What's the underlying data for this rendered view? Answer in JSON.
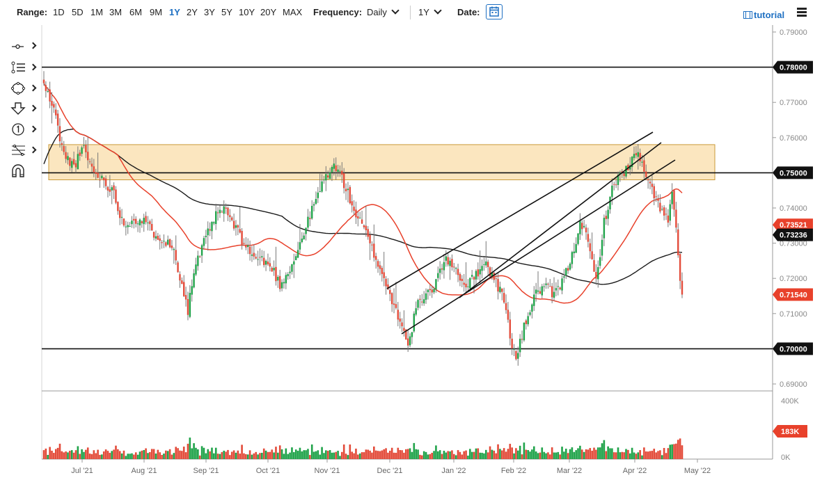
{
  "toolbar": {
    "range_label": "Range:",
    "ranges": [
      "1D",
      "5D",
      "1M",
      "3M",
      "6M",
      "9M",
      "1Y",
      "2Y",
      "3Y",
      "5Y",
      "10Y",
      "20Y",
      "MAX"
    ],
    "active_range": "1Y",
    "frequency_label": "Frequency:",
    "frequency_value": "Daily",
    "period_value": "1Y",
    "date_label": "Date:",
    "tutorial_label": "tutorial"
  },
  "tools": [
    "crosshair-tool-icon",
    "trend-lines-icon",
    "shapes-icon",
    "arrow-down-icon",
    "number-marker-icon",
    "fibonacci-icon",
    "magnet-icon"
  ],
  "colors": {
    "up": "#20a34a",
    "down": "#e34b3a",
    "ma_fast": "#e8412b",
    "ma_slow": "#1a1a1a",
    "zone_fill": "#fbe6bf",
    "zone_stroke": "#c99a3a",
    "accent": "#1d6fc2"
  },
  "chart_data": {
    "type": "candlestick",
    "title": "",
    "xlabel": "",
    "ylabel": "",
    "ylim": [
      0.685,
      0.79
    ],
    "y_ticks": [
      "0.79000",
      "0.78000",
      "0.77000",
      "0.76000",
      "0.75000",
      "0.74000",
      "0.73000",
      "0.72000",
      "0.71000",
      "0.70000",
      "0.69000"
    ],
    "x_ticks": [
      "Jul '21",
      "Aug '21",
      "Sep '21",
      "Oct '21",
      "Nov '21",
      "Dec '21",
      "Jan '22",
      "Feb '22",
      "Mar '22",
      "Apr '22",
      "May '22"
    ],
    "horizontal_lines": [
      0.78,
      0.75,
      0.7
    ],
    "resistance_zone": [
      0.748,
      0.758
    ],
    "price_labels": [
      {
        "value": 0.78,
        "text": "0.78000",
        "color": "#111111"
      },
      {
        "value": 0.75,
        "text": "0.75000",
        "color": "#111111"
      },
      {
        "value": 0.7,
        "text": "0.70000",
        "color": "#111111"
      },
      {
        "value": 0.73521,
        "text": "0.73521",
        "color": "#e8412b"
      },
      {
        "value": 0.73236,
        "text": "0.73236",
        "color": "#111111"
      },
      {
        "value": 0.7154,
        "text": "0.71540",
        "color": "#e8412b"
      }
    ],
    "close_path": [
      [
        0,
        0.775
      ],
      [
        5,
        0.768
      ],
      [
        10,
        0.755
      ],
      [
        15,
        0.752
      ],
      [
        20,
        0.757
      ],
      [
        25,
        0.75
      ],
      [
        30,
        0.748
      ],
      [
        35,
        0.744
      ],
      [
        40,
        0.735
      ],
      [
        45,
        0.737
      ],
      [
        50,
        0.736
      ],
      [
        55,
        0.733
      ],
      [
        60,
        0.731
      ],
      [
        65,
        0.728
      ],
      [
        70,
        0.716
      ],
      [
        72,
        0.711
      ],
      [
        75,
        0.722
      ],
      [
        80,
        0.73
      ],
      [
        85,
        0.737
      ],
      [
        90,
        0.74
      ],
      [
        95,
        0.735
      ],
      [
        100,
        0.73
      ],
      [
        105,
        0.726
      ],
      [
        110,
        0.725
      ],
      [
        115,
        0.722
      ],
      [
        118,
        0.718
      ],
      [
        125,
        0.725
      ],
      [
        130,
        0.733
      ],
      [
        135,
        0.741
      ],
      [
        140,
        0.748
      ],
      [
        144,
        0.752
      ],
      [
        148,
        0.75
      ],
      [
        152,
        0.744
      ],
      [
        156,
        0.738
      ],
      [
        160,
        0.734
      ],
      [
        165,
        0.727
      ],
      [
        170,
        0.72
      ],
      [
        175,
        0.712
      ],
      [
        180,
        0.706
      ],
      [
        182,
        0.7
      ],
      [
        186,
        0.712
      ],
      [
        190,
        0.714
      ],
      [
        195,
        0.718
      ],
      [
        200,
        0.725
      ],
      [
        205,
        0.724
      ],
      [
        210,
        0.718
      ],
      [
        215,
        0.72
      ],
      [
        220,
        0.725
      ],
      [
        225,
        0.72
      ],
      [
        230,
        0.714
      ],
      [
        234,
        0.701
      ],
      [
        236,
        0.697
      ],
      [
        240,
        0.706
      ],
      [
        245,
        0.715
      ],
      [
        250,
        0.718
      ],
      [
        255,
        0.715
      ],
      [
        260,
        0.72
      ],
      [
        265,
        0.728
      ],
      [
        268,
        0.737
      ],
      [
        272,
        0.73
      ],
      [
        276,
        0.719
      ],
      [
        280,
        0.736
      ],
      [
        284,
        0.745
      ],
      [
        288,
        0.75
      ],
      [
        292,
        0.751
      ],
      [
        296,
        0.756
      ],
      [
        299,
        0.752
      ],
      [
        302,
        0.747
      ],
      [
        306,
        0.743
      ],
      [
        309,
        0.739
      ],
      [
        312,
        0.736
      ],
      [
        314,
        0.744
      ],
      [
        316,
        0.735
      ],
      [
        318,
        0.718
      ],
      [
        319,
        0.7154
      ]
    ],
    "series": [
      {
        "name": "",
        "color": "#e8412b",
        "type": "moving-average"
      },
      {
        "name": "",
        "color": "#1a1a1a",
        "type": "moving-average"
      }
    ],
    "volume_axis": [
      "400K",
      "0K"
    ],
    "volume_label": "183K",
    "volume_range": [
      0,
      400000
    ],
    "grid": false,
    "legend": "none"
  }
}
